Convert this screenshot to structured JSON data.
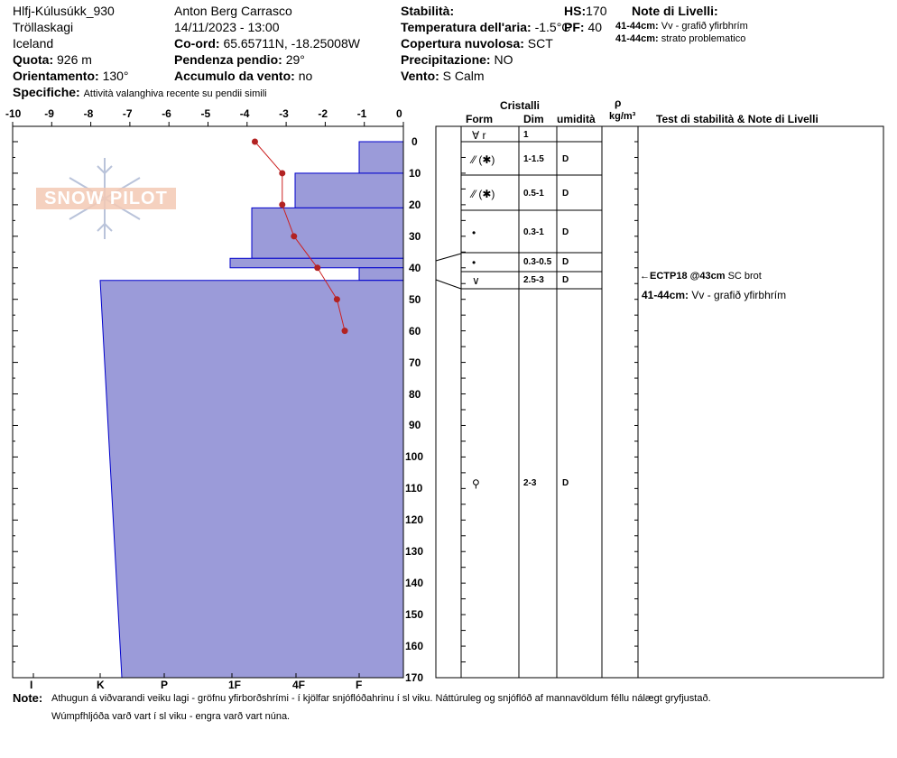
{
  "header": {
    "location": "Hlfj-Kúlusúkk_930",
    "region": "Tröllaskagi",
    "country": "Iceland",
    "quota_label": "Quota:",
    "quota_value": "926 m",
    "orient_label": "Orientamento:",
    "orient_value": "130°",
    "spec_label": "Specifiche:",
    "spec_value": "Attività valanghiva recente su pendii simili",
    "observer": "Anton Berg Carrasco",
    "datetime": "14/11/2023 - 13:00",
    "coord_label": "Co-ord:",
    "coord_value": "65.65711N, -18.25008W",
    "slope_label": "Pendenza pendio:",
    "slope_value": "29°",
    "wind_load_label": "Accumulo da vento:",
    "wind_load_value": "no",
    "stab_label": "Stabilità:",
    "air_label": "Temperatura dell'aria:",
    "air_value": "-1.5°C",
    "cloud_label": "Copertura nuvolosa:",
    "cloud_value": "SCT",
    "precip_label": "Precipitazione:",
    "precip_value": "NO",
    "wind_label": "Vento:",
    "wind_value": "S Calm",
    "hs_label": "HS:",
    "hs_value": "170",
    "pf_label": "PF:",
    "pf_value": "40",
    "layer_notes_title": "Note di Livelli:",
    "layer_notes": [
      {
        "range": "41-44cm:",
        "text": "Vv - grafið yfirbhrím"
      },
      {
        "range": "41-44cm:",
        "text": "strato problematico"
      }
    ]
  },
  "columns": {
    "cristalli": "Cristalli",
    "form": "Form",
    "dim": "Dim",
    "umidita": "umidità",
    "rho": "ρ",
    "rho_unit": "kg/m³",
    "stability": "Test di stabilità & Note di Livelli"
  },
  "temp_ticks": [
    "-10",
    "-9",
    "-8",
    "-7",
    "-6",
    "-5",
    "-4",
    "-3",
    "-2",
    "-1",
    "0"
  ],
  "hardness_ticks": [
    "I",
    "K",
    "P",
    "1F",
    "4F",
    "F"
  ],
  "logo_text": "SNOW PILOT",
  "layers": [
    {
      "form": "∀ r",
      "dim": "1",
      "wet": ""
    },
    {
      "form": "⁄⁄ (✱)",
      "dim": "1-1.5",
      "wet": "D"
    },
    {
      "form": "⁄⁄ (✱)",
      "dim": "0.5-1",
      "wet": "D"
    },
    {
      "form": "•",
      "dim": "0.3-1",
      "wet": "D"
    },
    {
      "form": "•",
      "dim": "0.3-0.5",
      "wet": "D"
    },
    {
      "form": "∨",
      "dim": "2.5-3",
      "wet": "D"
    },
    {
      "form": "⚲",
      "dim": "2-3",
      "wet": "D"
    }
  ],
  "stability_notes": [
    {
      "test": "ECTP18 @43cm",
      "result": "SC brot"
    },
    {
      "range": "41-44cm:",
      "text": "Vv - grafið yfirbhrím"
    }
  ],
  "footer": {
    "label": "Note:",
    "line1": "Athugun á viðvarandi veiku lagi - gröfnu yfirborðshrími - í kjölfar snjóflóðahrinu í sl viku. Náttúruleg og snjóflóð af mannavöldum féllu nálægt gryfjustað.",
    "line2": "Wúmpfhljóða varð vart í sl viku - engra varð vart núna."
  },
  "chart_data": {
    "type": "snow-profile",
    "depth_axis": {
      "label": "",
      "range": [
        0,
        170
      ],
      "ticks": [
        0,
        10,
        20,
        30,
        40,
        50,
        60,
        70,
        80,
        90,
        100,
        110,
        120,
        130,
        140,
        150,
        160,
        170
      ]
    },
    "temp_axis": {
      "range": [
        -10,
        0
      ],
      "ticks": [
        -10,
        -9,
        -8,
        -7,
        -6,
        -5,
        -4,
        -3,
        -2,
        -1,
        0
      ]
    },
    "hardness_scale": [
      "I",
      "K",
      "P",
      "1F",
      "4F",
      "F"
    ],
    "hardness_layers": [
      {
        "top": 0,
        "bottom": 10,
        "hardness": "F"
      },
      {
        "top": 10,
        "bottom": 21,
        "hardness": "4F-"
      },
      {
        "top": 21,
        "bottom": 37,
        "hardness": "1F"
      },
      {
        "top": 37,
        "bottom": 40,
        "hardness": "1F+"
      },
      {
        "top": 40,
        "bottom": 44,
        "hardness": "F"
      },
      {
        "top": 44,
        "bottom": 170,
        "hardness": "K/P"
      }
    ],
    "temperature": [
      {
        "depth": 0,
        "temp": -3.8
      },
      {
        "depth": 10,
        "temp": -3.1
      },
      {
        "depth": 20,
        "temp": -3.1
      },
      {
        "depth": 30,
        "temp": -2.8
      },
      {
        "depth": 40,
        "temp": -2.2
      },
      {
        "depth": 50,
        "temp": -1.7
      },
      {
        "depth": 60,
        "temp": -1.5
      }
    ]
  }
}
